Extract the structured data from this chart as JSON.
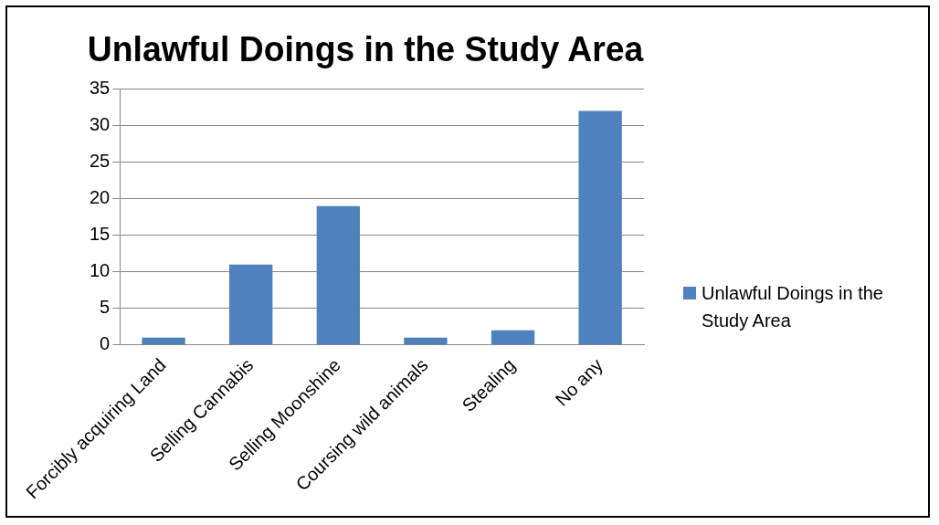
{
  "chart_data": {
    "type": "bar",
    "title": "Unlawful Doings in the Study Area",
    "categories": [
      "Forcibly acquiring Land",
      "Selling Cannabis",
      "Selling Moonshine",
      "Coursing wild animals",
      "Stealing",
      "No any"
    ],
    "series": [
      {
        "name": "Unlawful Doings in the Study Area",
        "color": "#4f81bd",
        "values": [
          1,
          11,
          19,
          1,
          2,
          32
        ]
      }
    ],
    "ylim": [
      0,
      35
    ],
    "yticks": [
      0,
      5,
      10,
      15,
      20,
      25,
      30,
      35
    ],
    "grid": "y",
    "legend": "right"
  }
}
